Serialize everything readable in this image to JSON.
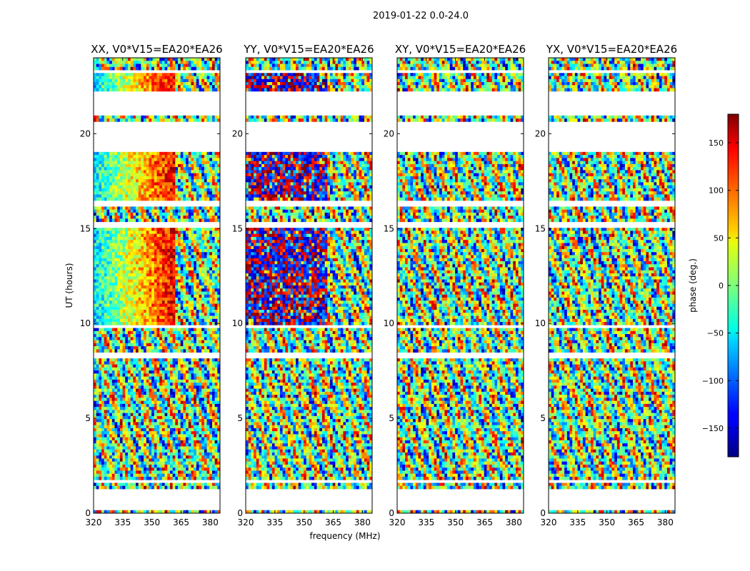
{
  "chart_data": {
    "type": "heatmap",
    "suptitle": "2019-01-22 0.0-24.0",
    "xlabel": "frequency (MHz)",
    "ylabel": "UT (hours)",
    "xlim": [
      320,
      385
    ],
    "ylim": [
      0,
      24
    ],
    "xticks": [
      320,
      335,
      350,
      365,
      380
    ],
    "yticks": [
      0,
      5,
      10,
      15,
      20
    ],
    "colormap": "jet",
    "colorbar": {
      "label": "phase (deg.)",
      "range": [
        -180,
        180
      ],
      "ticks": [
        150,
        100,
        50,
        0,
        -50,
        -100,
        -150
      ],
      "tick_labels": [
        "150",
        "100",
        "50",
        "0",
        "−50",
        "−100",
        "−150"
      ]
    },
    "panels": [
      {
        "title": "XX, V0*V15=EA20*EA26"
      },
      {
        "title": "YY, V0*V15=EA20*EA26"
      },
      {
        "title": "XY, V0*V15=EA20*EA26"
      },
      {
        "title": "YX, V0*V15=EA20*EA26"
      }
    ],
    "data_gaps_ut_hours": [
      [
        0.1,
        1.3
      ],
      [
        1.6,
        1.7
      ],
      [
        9.7,
        9.9
      ],
      [
        8.2,
        8.5
      ],
      [
        15.1,
        15.3
      ],
      [
        16.2,
        16.5
      ],
      [
        19.1,
        20.6
      ],
      [
        21.0,
        21.4
      ],
      [
        21.5,
        22.3
      ],
      [
        23.2,
        23.4
      ]
    ],
    "channel_split_mhz": 362
  }
}
